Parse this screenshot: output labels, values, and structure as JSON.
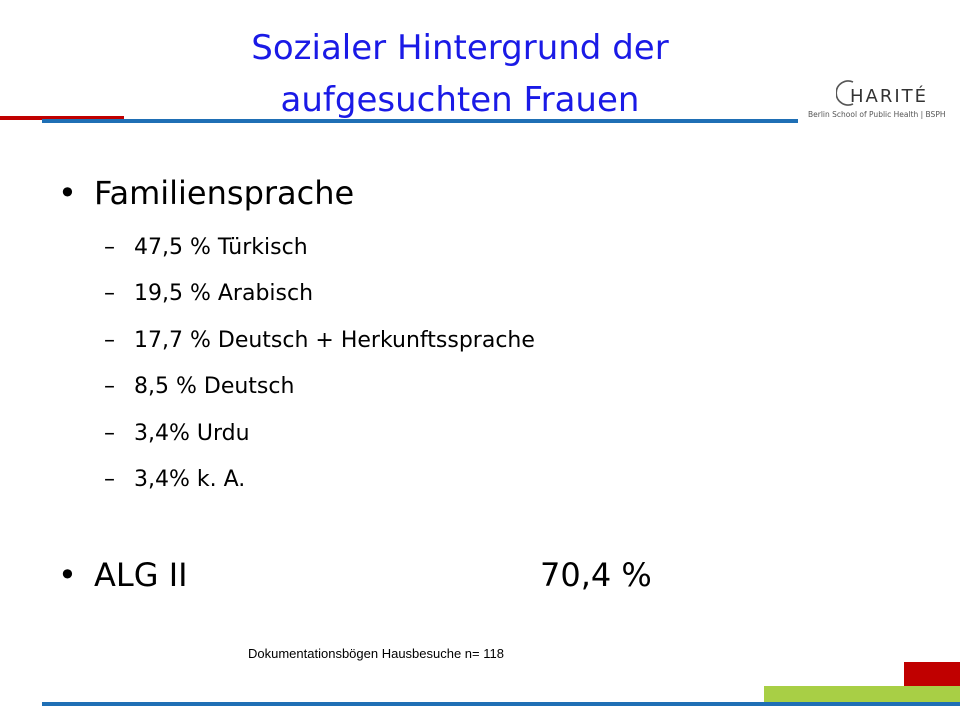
{
  "slide": {
    "title_line1": "Sozialer Hintergrund der",
    "title_line2": "aufgesuchten Frauen"
  },
  "logo": {
    "wordmark": "HARITÉ",
    "subtitle": "Berlin School of Public Health | BSPH"
  },
  "bullets": [
    {
      "label": "Familiensprache",
      "items": [
        "47,5 % Türkisch",
        "19,5 % Arabisch",
        "17,7 % Deutsch + Herkunftssprache",
        "8,5 % Deutsch",
        "3,4% Urdu",
        "3,4% k. A."
      ]
    },
    {
      "label": "ALG II",
      "value": "70,4 %"
    }
  ],
  "footnote": "Dokumentationsbögen Hausbesuche n= 118",
  "colors": {
    "title": "#1a1ae6",
    "accent_red": "#c00000",
    "accent_blue": "#1f6fb5",
    "accent_green": "#a8cf45"
  }
}
